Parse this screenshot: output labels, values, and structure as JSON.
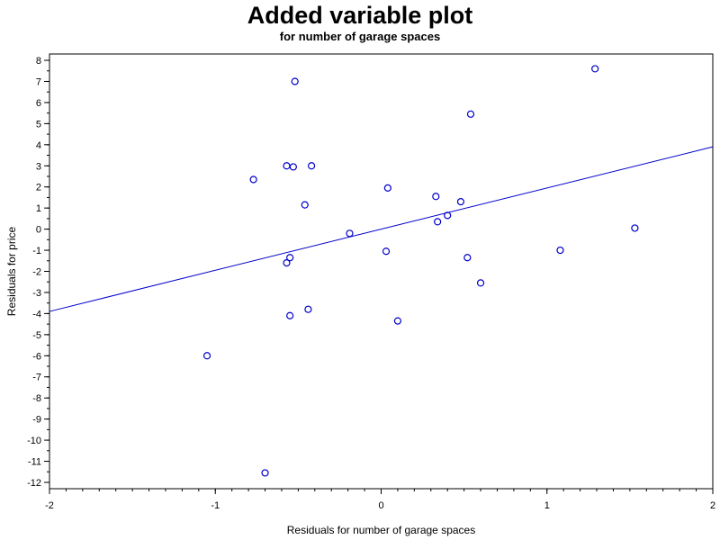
{
  "chart_data": {
    "type": "scatter",
    "title": "Added variable plot",
    "subtitle": "for number of garage spaces",
    "xlabel": "Residuals for number of garage spaces",
    "ylabel": "Residuals for price",
    "xlim": [
      -2,
      2
    ],
    "ylim": [
      -12.3,
      8.3
    ],
    "x_ticks": [
      -2,
      -1,
      0,
      1,
      2
    ],
    "x_minor_step": 0.1,
    "y_ticks": [
      -12,
      -11,
      -10,
      -9,
      -8,
      -7,
      -6,
      -5,
      -4,
      -3,
      -2,
      -1,
      0,
      1,
      2,
      3,
      4,
      5,
      6,
      7,
      8
    ],
    "y_minor_step": 0.5,
    "point_color": "#0000cc",
    "line_color": "#0000cc",
    "fit_line": {
      "slope": 1.95,
      "intercept": 0.0
    },
    "points": [
      {
        "x": 1.29,
        "y": 7.6
      },
      {
        "x": -0.52,
        "y": 7.0
      },
      {
        "x": 0.54,
        "y": 5.45
      },
      {
        "x": -0.57,
        "y": 3.0
      },
      {
        "x": -0.53,
        "y": 2.95
      },
      {
        "x": -0.42,
        "y": 3.0
      },
      {
        "x": -0.77,
        "y": 2.35
      },
      {
        "x": 0.04,
        "y": 1.95
      },
      {
        "x": 0.33,
        "y": 1.55
      },
      {
        "x": 0.48,
        "y": 1.3
      },
      {
        "x": -0.46,
        "y": 1.15
      },
      {
        "x": 0.4,
        "y": 0.65
      },
      {
        "x": 0.34,
        "y": 0.35
      },
      {
        "x": 1.53,
        "y": 0.05
      },
      {
        "x": -0.19,
        "y": -0.2
      },
      {
        "x": 0.03,
        "y": -1.05
      },
      {
        "x": 1.08,
        "y": -1.0
      },
      {
        "x": -0.55,
        "y": -1.35
      },
      {
        "x": 0.52,
        "y": -1.35
      },
      {
        "x": -0.57,
        "y": -1.6
      },
      {
        "x": 0.6,
        "y": -2.55
      },
      {
        "x": -0.44,
        "y": -3.8
      },
      {
        "x": -0.55,
        "y": -4.1
      },
      {
        "x": 0.1,
        "y": -4.35
      },
      {
        "x": -1.05,
        "y": -6.0
      },
      {
        "x": -0.7,
        "y": -11.55
      }
    ]
  }
}
